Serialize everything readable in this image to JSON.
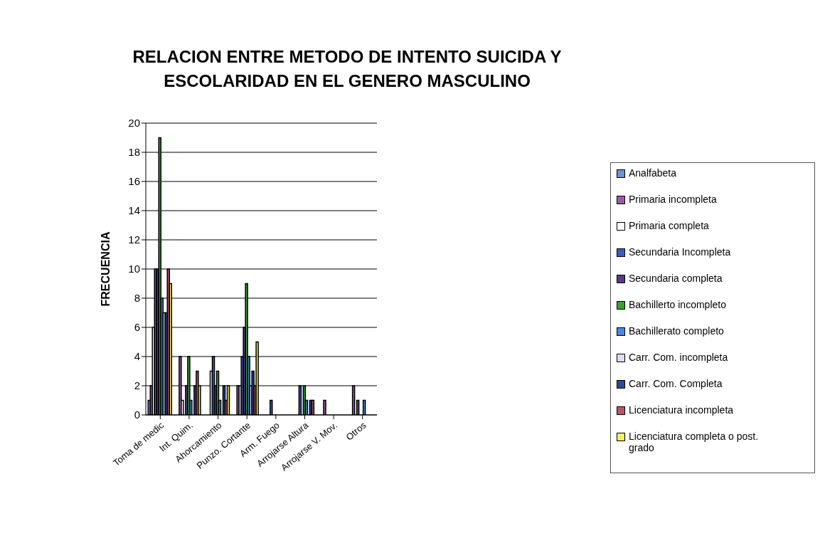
{
  "chart_data": {
    "type": "bar",
    "title": "RELACION ENTRE METODO DE INTENTO SUICIDA Y ESCOLARIDAD EN EL GENERO MASCULINO",
    "ylabel": "FRECUENCIA",
    "categories": [
      "Toma de medic",
      "Int. Quim.",
      "Ahorcamiento",
      "Punzo. Cortante",
      "Arm. Fuego",
      "Arrojarse Altura",
      "Arrojarse V. Mov.",
      "Otros"
    ],
    "series": [
      {
        "name": "Analfabeta",
        "color": "#7090d8",
        "values": [
          1,
          0,
          0,
          0,
          0,
          0,
          0,
          0
        ]
      },
      {
        "name": "Primaria incompleta",
        "color": "#9a5aa6",
        "values": [
          2,
          4,
          0,
          2,
          0,
          0,
          1,
          2
        ]
      },
      {
        "name": "Primaria completa",
        "color": "#ffffff",
        "values": [
          6,
          1,
          3,
          2,
          0,
          0,
          0,
          0
        ]
      },
      {
        "name": "Secundaria Incompleta",
        "color": "#3a5cc0",
        "values": [
          10,
          0,
          4,
          4,
          1,
          2,
          0,
          1
        ]
      },
      {
        "name": "Secundaria completa",
        "color": "#5a3a8c",
        "values": [
          10,
          2,
          2,
          6,
          0,
          0,
          0,
          0
        ]
      },
      {
        "name": "Bachillerto incompleto",
        "color": "#3aa032",
        "values": [
          19,
          4,
          3,
          9,
          0,
          2,
          0,
          0
        ]
      },
      {
        "name": "Bachillerato completo",
        "color": "#4a86e0",
        "values": [
          8,
          1,
          1,
          4,
          0,
          1,
          0,
          1
        ]
      },
      {
        "name": "Carr. Com. incompleta",
        "color": "#dcdcf4",
        "values": [
          7,
          0,
          0,
          2,
          0,
          0,
          0,
          0
        ]
      },
      {
        "name": "Carr. Com. Completa",
        "color": "#2a4a9c",
        "values": [
          7,
          2,
          2,
          3,
          0,
          1,
          0,
          0
        ]
      },
      {
        "name": "Licenciatura incompleta",
        "color": "#c05262",
        "values": [
          10,
          3,
          1,
          2,
          0,
          1,
          0,
          0
        ]
      },
      {
        "name": "Licenciatura completa o post. grado",
        "color": "#f0f060",
        "values": [
          9,
          2,
          2,
          5,
          0,
          0,
          0,
          0
        ]
      }
    ],
    "ylim": [
      0,
      20
    ],
    "yticks": [
      0,
      2,
      4,
      6,
      8,
      10,
      12,
      14,
      16,
      18,
      20
    ],
    "grid": "y",
    "legend": "right"
  }
}
